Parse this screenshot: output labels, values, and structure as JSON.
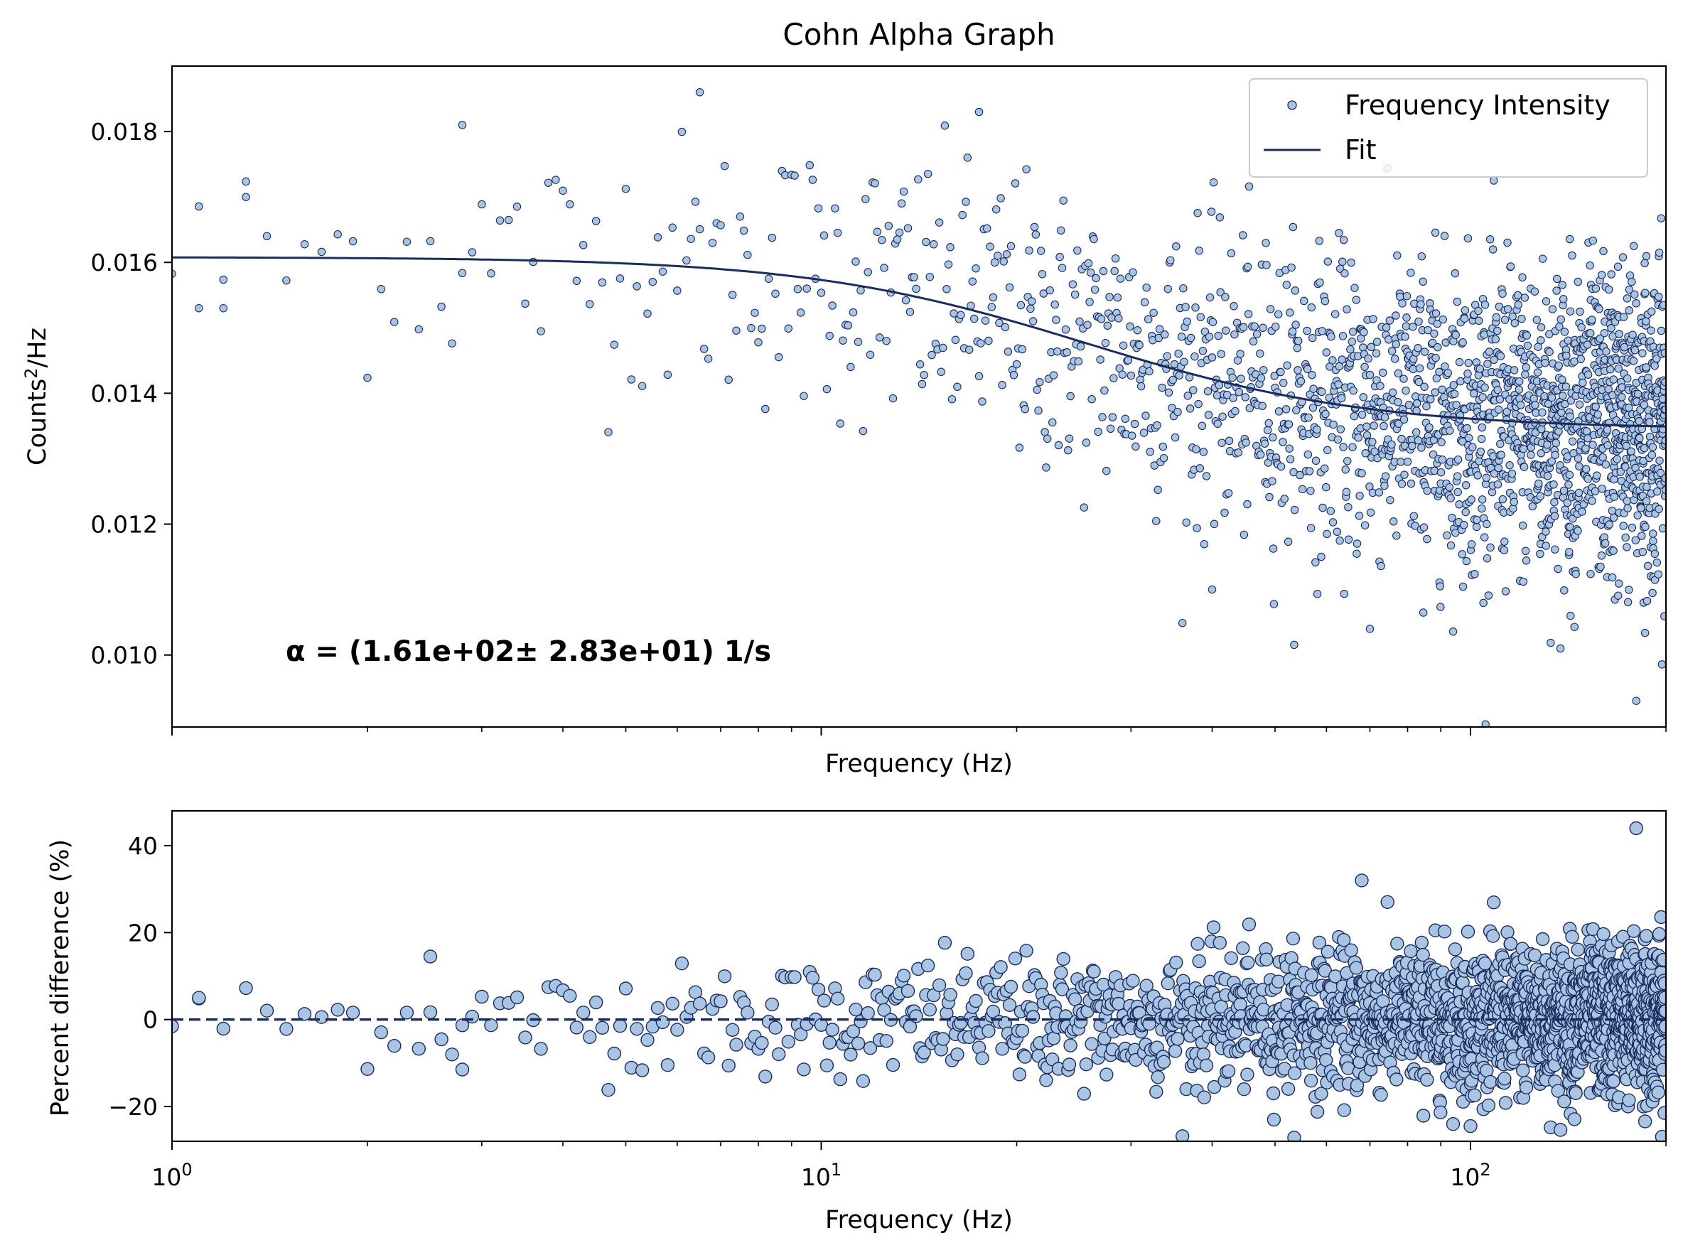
{
  "chart_data": [
    {
      "type": "scatter",
      "title": "Cohn Alpha Graph",
      "xlabel": "Frequency (Hz)",
      "ylabel": "Counts²/Hz",
      "xscale": "log",
      "xlim": [
        1,
        200
      ],
      "ylim": [
        0.0089,
        0.019
      ],
      "y_ticks": [
        "0.010",
        "0.012",
        "0.014",
        "0.016",
        "0.018"
      ],
      "grid": false,
      "legend": {
        "placement": "upper right",
        "entries": [
          "Frequency Intensity",
          "Fit"
        ]
      },
      "annotation": "α = (1.61e+02± 2.83e+01) 1/s",
      "series": [
        {
          "name": "Frequency Intensity",
          "kind": "scatter",
          "point_count": 1999,
          "x_range": [
            1,
            200
          ],
          "noise_std_percent": [
            5,
            9
          ],
          "sample_points": [
            {
              "x": 1.1,
              "y": 0.0153
            },
            {
              "x": 1.2,
              "y": 0.0153
            },
            {
              "x": 1.3,
              "y": 0.017
            },
            {
              "x": 2.8,
              "y": 0.0181
            },
            {
              "x": 6.5,
              "y": 0.0186
            },
            {
              "x": 17.5,
              "y": 0.0183
            },
            {
              "x": 40,
              "y": 0.011
            },
            {
              "x": 70,
              "y": 0.0104
            },
            {
              "x": 180,
              "y": 0.0093
            }
          ]
        },
        {
          "name": "Fit",
          "kind": "line",
          "model": "y = offset + amp / (1 + (x / fc)^2)",
          "params": {
            "offset": 0.01345,
            "amp": 0.00263,
            "fc": 25.6
          }
        }
      ],
      "colors": {
        "marker_fill": "#a9c5e3",
        "marker_edge": "#1a2b5c",
        "fit_line": "#1a2b5c"
      }
    },
    {
      "type": "scatter",
      "title": "",
      "xlabel": "Frequency (Hz)",
      "ylabel": "Percent difference (%)",
      "xscale": "log",
      "xlim": [
        1,
        200
      ],
      "x_ticks": [
        "10^0",
        "10^1",
        "10^2"
      ],
      "ylim": [
        -28,
        48
      ],
      "y_ticks": [
        "−20",
        "0",
        "20",
        "40"
      ],
      "grid": false,
      "series": [
        {
          "name": "Percent difference",
          "kind": "scatter",
          "point_count": 1999,
          "sample_points": [
            {
              "x": 1.1,
              "y": 5
            },
            {
              "x": 2.5,
              "y": 14.5
            },
            {
              "x": 2.8,
              "y": -11.5
            },
            {
              "x": 68,
              "y": 32
            },
            {
              "x": 100,
              "y": -24.5
            },
            {
              "x": 180,
              "y": 44
            }
          ]
        },
        {
          "name": "zero line",
          "kind": "hline",
          "y": 0,
          "style": "dashed"
        }
      ],
      "colors": {
        "marker_fill": "#a9c5e3",
        "marker_edge": "#1a2b5c",
        "zero_line": "#1a2b5c"
      }
    }
  ]
}
